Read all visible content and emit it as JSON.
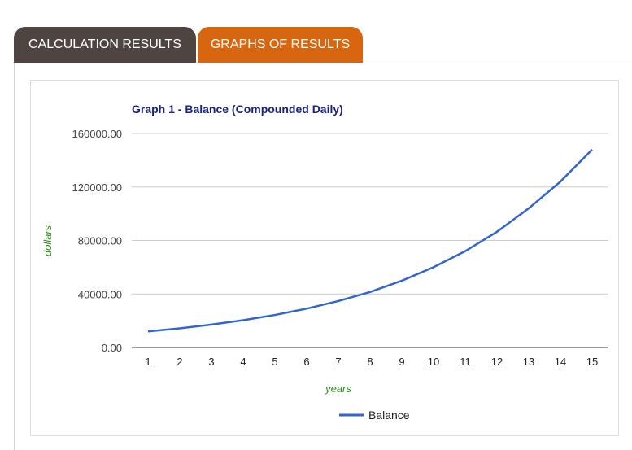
{
  "tabs": {
    "calc_label": "CALCULATION RESULTS",
    "graphs_label": "GRAPHS OF RESULTS",
    "active": "graphs"
  },
  "colors": {
    "tab_inactive": "#4e4542",
    "tab_active": "#d8650f",
    "series": "#3366cc",
    "axis_label": "#2e8b1a",
    "title": "#1a237e"
  },
  "chart_data": {
    "type": "line",
    "title": "Graph 1 - Balance (Compounded Daily)",
    "xlabel": "years",
    "ylabel": "dollars",
    "x": [
      1,
      2,
      3,
      4,
      5,
      6,
      7,
      8,
      9,
      10,
      11,
      12,
      13,
      14,
      15
    ],
    "y_ticks": [
      "0.00",
      "40000.00",
      "80000.00",
      "120000.00",
      "160000.00"
    ],
    "ylim": [
      0,
      160000
    ],
    "grid": true,
    "legend_position": "bottom",
    "series": [
      {
        "name": "Balance",
        "values": [
          12000,
          14300,
          17100,
          20400,
          24300,
          29000,
          34700,
          41500,
          49900,
          60000,
          72000,
          86500,
          104000,
          124000,
          148000
        ]
      }
    ]
  }
}
